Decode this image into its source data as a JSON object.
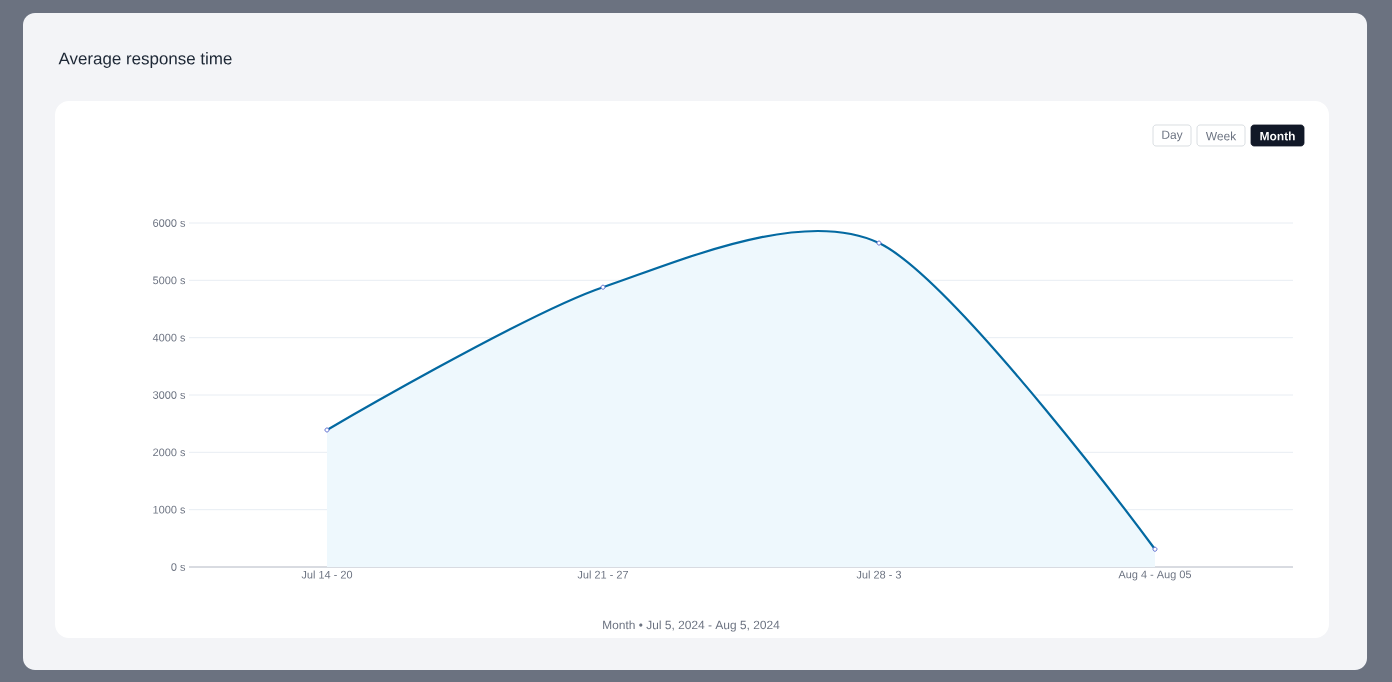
{
  "chart_data": {
    "type": "area",
    "title": "Average response time",
    "categories": [
      "Jul 14 - 20",
      "Jul 21 - 27",
      "Jul 28 - 3",
      "Aug 4 - Aug 05"
    ],
    "values": [
      2390,
      4880,
      5650,
      310
    ],
    "color": "#0369a1",
    "ylim": [
      0,
      6000
    ],
    "yticks": [
      {
        "value": 0,
        "label": "0 s"
      },
      {
        "value": 1000,
        "label": "1000 s"
      },
      {
        "value": 2000,
        "label": "2000 s"
      },
      {
        "value": 3000,
        "label": "3000 s"
      },
      {
        "value": 4000,
        "label": "4000 s"
      },
      {
        "value": 5000,
        "label": "5000 s"
      },
      {
        "value": 6000,
        "label": "6000 s"
      }
    ],
    "grid": "y",
    "marker": "circle",
    "line_style": "solid",
    "annotations": [
      "Day",
      "Week",
      "Month",
      "Month • Jul 5, 2024 - Aug 5, 2024"
    ]
  }
}
